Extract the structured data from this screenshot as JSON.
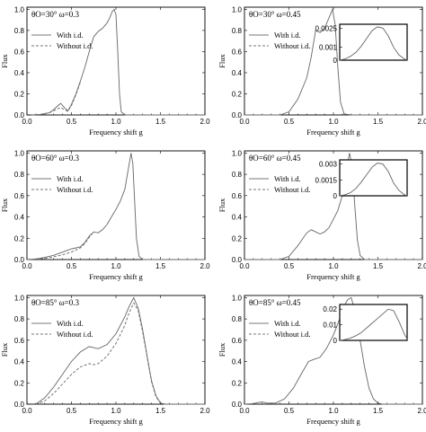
{
  "charts": [
    {
      "title": "θO=30°  ω=0.3",
      "xlabel": "Frequency shift g",
      "ylabel": "Flux",
      "xlim": [
        0,
        2.0
      ],
      "ylim": [
        0,
        1.02
      ],
      "xticks": [
        "0.0",
        "0.5",
        "1.0",
        "1.5",
        "2.0"
      ],
      "yticks": [
        "0.0",
        "0.2",
        "0.4",
        "0.6",
        "0.8",
        "1.0"
      ],
      "legend": [
        "With i.d.",
        "Without i.d."
      ],
      "series": [
        {
          "name": "With i.d.",
          "style": "solid",
          "x": [
            0.05,
            0.15,
            0.25,
            0.3,
            0.35,
            0.38,
            0.42,
            0.46,
            0.5,
            0.55,
            0.6,
            0.65,
            0.7,
            0.75,
            0.8,
            0.85,
            0.9,
            0.93,
            0.96,
            0.98,
            1.0,
            1.02,
            1.04,
            1.06,
            1.1,
            1.2,
            1.5,
            2.0
          ],
          "y": [
            0,
            0.005,
            0.02,
            0.05,
            0.09,
            0.11,
            0.07,
            0.04,
            0.1,
            0.2,
            0.32,
            0.45,
            0.6,
            0.74,
            0.79,
            0.82,
            0.87,
            0.92,
            0.98,
            1.0,
            0.95,
            0.6,
            0.2,
            0.03,
            0,
            0,
            0,
            0
          ]
        },
        {
          "name": "Without i.d.",
          "style": "dashed",
          "x": [
            0.05,
            0.15,
            0.25,
            0.3,
            0.35,
            0.38,
            0.42,
            0.46,
            0.5,
            0.55,
            0.6
          ],
          "y": [
            0,
            0.005,
            0.02,
            0.04,
            0.06,
            0.07,
            0.05,
            0.035,
            0.09,
            0.19,
            0.31
          ]
        }
      ]
    },
    {
      "title": "θO=30°  ω=0.45",
      "xlabel": "Frequency shift g",
      "ylabel": "Flux",
      "xlim": [
        0,
        2.0
      ],
      "ylim": [
        0,
        1.02
      ],
      "xticks": [
        "0.0",
        "0.5",
        "1.0",
        "1.5",
        "2.0"
      ],
      "yticks": [
        "0.0",
        "0.2",
        "0.4",
        "0.6",
        "0.8",
        "1.0"
      ],
      "legend": [
        "With i.d.",
        "Without i.d."
      ],
      "series": [
        {
          "name": "With i.d.",
          "style": "solid",
          "x": [
            0,
            0.4,
            0.5,
            0.6,
            0.7,
            0.75,
            0.8,
            0.85,
            0.9,
            0.95,
            0.99,
            1.02,
            1.05,
            1.08,
            1.12,
            1.2,
            1.5,
            2.0
          ],
          "y": [
            0,
            0,
            0.03,
            0.15,
            0.35,
            0.55,
            0.8,
            0.78,
            0.82,
            0.92,
            1.0,
            0.85,
            0.45,
            0.12,
            0.01,
            0,
            0,
            0
          ]
        }
      ],
      "inset": {
        "yticks": [
          "0",
          "0.001",
          "0.0025"
        ],
        "ymax": 0.0028,
        "x": [
          0,
          0.08,
          0.16,
          0.24,
          0.32,
          0.4,
          0.48,
          0.56,
          0.64,
          0.72,
          0.8,
          0.88,
          0.96,
          1.0
        ],
        "y": [
          0,
          0.0001,
          0.0003,
          0.0006,
          0.0011,
          0.0017,
          0.0023,
          0.0026,
          0.0025,
          0.0019,
          0.001,
          0.0004,
          0.0001,
          0
        ]
      }
    },
    {
      "title": "θO=60°  ω=0.3",
      "xlabel": "Frequency shift g",
      "ylabel": "Flux",
      "xlim": [
        0,
        2.0
      ],
      "ylim": [
        0,
        1.02
      ],
      "xticks": [
        "0.0",
        "0.5",
        "1.0",
        "1.5",
        "2.0"
      ],
      "yticks": [
        "0.0",
        "0.2",
        "0.4",
        "0.6",
        "0.8",
        "1.0"
      ],
      "legend": [
        "With i.d.",
        "Without i.d."
      ],
      "series": [
        {
          "name": "With i.d.",
          "style": "solid",
          "x": [
            0,
            0.1,
            0.2,
            0.3,
            0.4,
            0.5,
            0.55,
            0.6,
            0.65,
            0.7,
            0.75,
            0.8,
            0.85,
            0.9,
            0.95,
            1.0,
            1.05,
            1.1,
            1.15,
            1.17,
            1.19,
            1.21,
            1.23,
            1.26,
            1.3,
            1.5,
            2.0
          ],
          "y": [
            0,
            0.005,
            0.02,
            0.04,
            0.07,
            0.1,
            0.11,
            0.12,
            0.16,
            0.22,
            0.26,
            0.25,
            0.28,
            0.33,
            0.4,
            0.47,
            0.55,
            0.66,
            0.9,
            1.0,
            0.9,
            0.55,
            0.2,
            0.03,
            0,
            0,
            0
          ]
        },
        {
          "name": "Without i.d.",
          "style": "dashed",
          "x": [
            0,
            0.1,
            0.2,
            0.3,
            0.4,
            0.5,
            0.55,
            0.6,
            0.65,
            0.7,
            0.75
          ],
          "y": [
            0,
            0.003,
            0.01,
            0.025,
            0.045,
            0.07,
            0.09,
            0.11,
            0.15,
            0.21,
            0.26
          ]
        }
      ]
    },
    {
      "title": "θO=60°  ω=0.45",
      "xlabel": "Frequency shift g",
      "ylabel": "Flux",
      "xlim": [
        0,
        2.0
      ],
      "ylim": [
        0,
        1.02
      ],
      "xticks": [
        "0.0",
        "0.5",
        "1.0",
        "1.5",
        "2.0"
      ],
      "yticks": [
        "0.0",
        "0.2",
        "0.4",
        "0.6",
        "0.8",
        "1.0"
      ],
      "legend": [
        "With i.d.",
        "Without i.d."
      ],
      "series": [
        {
          "name": "With i.d.",
          "style": "solid",
          "x": [
            0,
            0.4,
            0.5,
            0.6,
            0.7,
            0.75,
            0.8,
            0.85,
            0.9,
            0.95,
            1.0,
            1.05,
            1.1,
            1.15,
            1.18,
            1.21,
            1.24,
            1.27,
            1.3,
            1.35,
            1.5,
            2.0
          ],
          "y": [
            0,
            0,
            0.03,
            0.13,
            0.25,
            0.28,
            0.26,
            0.24,
            0.26,
            0.3,
            0.38,
            0.46,
            0.6,
            0.85,
            1.0,
            0.88,
            0.5,
            0.18,
            0.04,
            0,
            0,
            0
          ]
        }
      ],
      "inset": {
        "yticks": [
          "0",
          "0.0015",
          "0.003"
        ],
        "ymax": 0.0034,
        "x": [
          0,
          0.08,
          0.16,
          0.24,
          0.32,
          0.4,
          0.48,
          0.56,
          0.64,
          0.72,
          0.8,
          0.88,
          0.96,
          1.0
        ],
        "y": [
          0,
          0.0001,
          0.0003,
          0.0007,
          0.0013,
          0.002,
          0.0027,
          0.0031,
          0.003,
          0.0023,
          0.0012,
          0.0005,
          0.0001,
          0
        ]
      }
    },
    {
      "title": "θO=85°  ω=0.3",
      "xlabel": "Frequency shift g",
      "ylabel": "Flux",
      "xlim": [
        0,
        2.0
      ],
      "ylim": [
        0,
        1.02
      ],
      "xticks": [
        "0.0",
        "0.5",
        "1.0",
        "1.5",
        "2.0"
      ],
      "yticks": [
        "0.0",
        "0.2",
        "0.4",
        "0.6",
        "0.8",
        "1.0"
      ],
      "legend": [
        "With i.d.",
        "Without i.d."
      ],
      "series": [
        {
          "name": "With i.d.",
          "style": "solid",
          "x": [
            0.1,
            0.2,
            0.3,
            0.4,
            0.5,
            0.6,
            0.7,
            0.75,
            0.8,
            0.9,
            1.0,
            1.1,
            1.15,
            1.2,
            1.25,
            1.3,
            1.35,
            1.4,
            1.45,
            1.5,
            1.55,
            2.0
          ],
          "y": [
            0,
            0.06,
            0.16,
            0.28,
            0.4,
            0.49,
            0.54,
            0.53,
            0.52,
            0.56,
            0.66,
            0.82,
            0.92,
            1.0,
            0.9,
            0.7,
            0.45,
            0.22,
            0.08,
            0.01,
            0,
            0
          ]
        },
        {
          "name": "Without i.d.",
          "style": "dashed",
          "x": [
            0.1,
            0.2,
            0.3,
            0.4,
            0.5,
            0.6,
            0.7,
            0.75,
            0.8,
            0.9,
            1.0,
            1.1,
            1.15,
            1.2,
            1.25,
            1.3,
            1.35,
            1.4,
            1.45,
            1.5,
            1.55,
            2.0
          ],
          "y": [
            0,
            0.03,
            0.1,
            0.19,
            0.28,
            0.35,
            0.38,
            0.37,
            0.38,
            0.45,
            0.57,
            0.74,
            0.86,
            0.95,
            0.88,
            0.68,
            0.44,
            0.21,
            0.07,
            0.01,
            0,
            0
          ]
        }
      ]
    },
    {
      "title": "θO=85°  ω=0.45",
      "xlabel": "Frequency shift g",
      "ylabel": "Flux",
      "xlim": [
        0,
        2.0
      ],
      "ylim": [
        0,
        1.02
      ],
      "xticks": [
        "0.0",
        "0.5",
        "1.0",
        "1.5",
        "2.0"
      ],
      "yticks": [
        "0.0",
        "0.2",
        "0.4",
        "0.6",
        "0.8",
        "1.0"
      ],
      "legend": [
        "With i.d.",
        "Without i.d."
      ],
      "series": [
        {
          "name": "With i.d.",
          "style": "solid",
          "x": [
            0,
            0.1,
            0.15,
            0.2,
            0.25,
            0.35,
            0.45,
            0.55,
            0.65,
            0.72,
            0.78,
            0.85,
            0.92,
            1.0,
            1.08,
            1.12,
            1.16,
            1.2,
            1.25,
            1.3,
            1.35,
            1.4,
            1.45,
            1.5,
            1.55,
            2.0
          ],
          "y": [
            0,
            0.005,
            0.015,
            0.02,
            0.01,
            0.01,
            0.05,
            0.15,
            0.3,
            0.4,
            0.42,
            0.44,
            0.52,
            0.65,
            0.82,
            0.92,
            0.98,
            1.0,
            0.85,
            0.6,
            0.35,
            0.15,
            0.05,
            0.01,
            0,
            0
          ]
        }
      ],
      "inset": {
        "yticks": [
          "0",
          "0.01",
          "0.02"
        ],
        "ymax": 0.023,
        "x": [
          0,
          0.08,
          0.16,
          0.24,
          0.32,
          0.4,
          0.48,
          0.56,
          0.64,
          0.72,
          0.8,
          0.88,
          0.96,
          1.0
        ],
        "y": [
          0,
          0.0005,
          0.0015,
          0.003,
          0.005,
          0.008,
          0.011,
          0.014,
          0.017,
          0.02,
          0.019,
          0.012,
          0.004,
          0.001
        ]
      }
    }
  ],
  "chart_data": [
    {
      "type": "line",
      "title": "θO=30°  ω=0.3",
      "xlabel": "Frequency shift g",
      "ylabel": "Flux",
      "xlim": [
        0,
        2
      ],
      "ylim": [
        0,
        1
      ],
      "series": [
        {
          "name": "With i.d.",
          "x": [
            0.05,
            0.38,
            0.46,
            0.75,
            0.8,
            0.98,
            1.04,
            1.1
          ],
          "y": [
            0,
            0.11,
            0.04,
            0.74,
            0.79,
            1.0,
            0.2,
            0
          ]
        },
        {
          "name": "Without i.d.",
          "x": [
            0.05,
            0.38,
            0.46,
            0.6
          ],
          "y": [
            0,
            0.07,
            0.035,
            0.31
          ]
        }
      ]
    },
    {
      "type": "line",
      "title": "θO=30°  ω=0.45",
      "xlabel": "Frequency shift g",
      "ylabel": "Flux",
      "xlim": [
        0,
        2
      ],
      "ylim": [
        0,
        1
      ],
      "series": [
        {
          "name": "With i.d.",
          "x": [
            0.4,
            0.8,
            0.99,
            1.12
          ],
          "y": [
            0,
            0.8,
            1.0,
            0.01
          ]
        }
      ]
    },
    {
      "type": "line",
      "title": "θO=60°  ω=0.3",
      "xlabel": "Frequency shift g",
      "ylabel": "Flux",
      "xlim": [
        0,
        2
      ],
      "ylim": [
        0,
        1
      ],
      "series": [
        {
          "name": "With i.d.",
          "x": [
            0,
            0.5,
            0.75,
            1.17,
            1.3
          ],
          "y": [
            0,
            0.1,
            0.26,
            1.0,
            0
          ]
        },
        {
          "name": "Without i.d.",
          "x": [
            0,
            0.5,
            0.75
          ],
          "y": [
            0,
            0.07,
            0.26
          ]
        }
      ]
    },
    {
      "type": "line",
      "title": "θO=60°  ω=0.45",
      "xlabel": "Frequency shift g",
      "ylabel": "Flux",
      "xlim": [
        0,
        2
      ],
      "ylim": [
        0,
        1
      ],
      "series": [
        {
          "name": "With i.d.",
          "x": [
            0.4,
            0.75,
            1.18,
            1.35
          ],
          "y": [
            0,
            0.28,
            1.0,
            0
          ]
        }
      ]
    },
    {
      "type": "line",
      "title": "θO=85°  ω=0.3",
      "xlabel": "Frequency shift g",
      "ylabel": "Flux",
      "xlim": [
        0,
        2
      ],
      "ylim": [
        0,
        1
      ],
      "series": [
        {
          "name": "With i.d.",
          "x": [
            0.1,
            0.7,
            1.2,
            1.55
          ],
          "y": [
            0,
            0.54,
            1.0,
            0
          ]
        },
        {
          "name": "Without i.d.",
          "x": [
            0.1,
            0.7,
            1.2,
            1.55
          ],
          "y": [
            0,
            0.38,
            0.95,
            0
          ]
        }
      ]
    },
    {
      "type": "line",
      "title": "θO=85°  ω=0.45",
      "xlabel": "Frequency shift g",
      "ylabel": "Flux",
      "xlim": [
        0,
        2
      ],
      "ylim": [
        0,
        1
      ],
      "series": [
        {
          "name": "With i.d.",
          "x": [
            0,
            0.2,
            0.78,
            1.2,
            1.55
          ],
          "y": [
            0,
            0.02,
            0.42,
            1.0,
            0
          ]
        }
      ]
    }
  ]
}
